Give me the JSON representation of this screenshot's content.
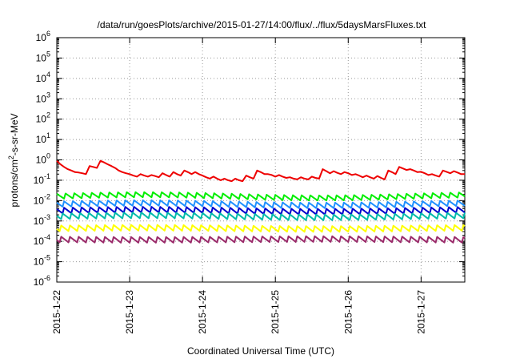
{
  "chart_data": {
    "type": "line",
    "title": "/data/run/goesPlots/archive/2015-01-27/14:00/flux/../flux/5daysMarsFluxes.txt",
    "xlabel": "Coordinated Universal Time (UTC)",
    "ylabel": {
      "base": "protons/cm",
      "sup": "2",
      "rest": "-s-sr-MeV"
    },
    "y_scale": "log",
    "ylim_exp": [
      -6,
      6
    ],
    "y_ticks": [
      {
        "base": "10",
        "exp": "-6"
      },
      {
        "base": "10",
        "exp": "-5"
      },
      {
        "base": "10",
        "exp": "-4"
      },
      {
        "base": "10",
        "exp": "-3"
      },
      {
        "base": "10",
        "exp": "-2"
      },
      {
        "base": "10",
        "exp": "-1"
      },
      {
        "base": "10",
        "exp": "0"
      },
      {
        "base": "10",
        "exp": "1"
      },
      {
        "base": "10",
        "exp": "2"
      },
      {
        "base": "10",
        "exp": "3"
      },
      {
        "base": "10",
        "exp": "4"
      },
      {
        "base": "10",
        "exp": "5"
      },
      {
        "base": "10",
        "exp": "6"
      }
    ],
    "x_ticks": [
      "2015-1-22",
      "2015-1-23",
      "2015-1-24",
      "2015-1-25",
      "2015-1-26",
      "2015-1-27"
    ],
    "xlim_days": [
      0,
      5.6
    ],
    "grid": true,
    "series": [
      {
        "color": "#ee0000",
        "width": 2,
        "points": [
          [
            0.0,
            0.9
          ],
          [
            0.05,
            0.6
          ],
          [
            0.1,
            0.45
          ],
          [
            0.15,
            0.35
          ],
          [
            0.2,
            0.3
          ],
          [
            0.25,
            0.25
          ],
          [
            0.3,
            0.24
          ],
          [
            0.35,
            0.22
          ],
          [
            0.4,
            0.2
          ],
          [
            0.45,
            0.5
          ],
          [
            0.5,
            0.45
          ],
          [
            0.55,
            0.4
          ],
          [
            0.6,
            0.9
          ],
          [
            0.65,
            0.75
          ],
          [
            0.7,
            0.6
          ],
          [
            0.75,
            0.5
          ],
          [
            0.8,
            0.4
          ],
          [
            0.85,
            0.3
          ],
          [
            0.9,
            0.25
          ],
          [
            0.95,
            0.22
          ],
          [
            1.0,
            0.2
          ],
          [
            1.05,
            0.17
          ],
          [
            1.1,
            0.15
          ],
          [
            1.15,
            0.2
          ],
          [
            1.2,
            0.17
          ],
          [
            1.25,
            0.15
          ],
          [
            1.3,
            0.18
          ],
          [
            1.35,
            0.16
          ],
          [
            1.4,
            0.14
          ],
          [
            1.45,
            0.22
          ],
          [
            1.5,
            0.18
          ],
          [
            1.55,
            0.15
          ],
          [
            1.6,
            0.25
          ],
          [
            1.65,
            0.2
          ],
          [
            1.7,
            0.17
          ],
          [
            1.75,
            0.3
          ],
          [
            1.8,
            0.25
          ],
          [
            1.85,
            0.2
          ],
          [
            1.9,
            0.25
          ],
          [
            1.95,
            0.2
          ],
          [
            2.0,
            0.17
          ],
          [
            2.05,
            0.14
          ],
          [
            2.1,
            0.12
          ],
          [
            2.15,
            0.15
          ],
          [
            2.2,
            0.12
          ],
          [
            2.25,
            0.1
          ],
          [
            2.3,
            0.12
          ],
          [
            2.35,
            0.1
          ],
          [
            2.4,
            0.09
          ],
          [
            2.45,
            0.12
          ],
          [
            2.5,
            0.1
          ],
          [
            2.55,
            0.09
          ],
          [
            2.6,
            0.17
          ],
          [
            2.65,
            0.14
          ],
          [
            2.7,
            0.12
          ],
          [
            2.75,
            0.3
          ],
          [
            2.8,
            0.25
          ],
          [
            2.85,
            0.2
          ],
          [
            2.9,
            0.2
          ],
          [
            2.95,
            0.18
          ],
          [
            3.0,
            0.15
          ],
          [
            3.05,
            0.18
          ],
          [
            3.1,
            0.15
          ],
          [
            3.15,
            0.13
          ],
          [
            3.2,
            0.14
          ],
          [
            3.25,
            0.12
          ],
          [
            3.3,
            0.11
          ],
          [
            3.35,
            0.14
          ],
          [
            3.4,
            0.12
          ],
          [
            3.45,
            0.11
          ],
          [
            3.5,
            0.15
          ],
          [
            3.55,
            0.13
          ],
          [
            3.6,
            0.12
          ],
          [
            3.65,
            0.35
          ],
          [
            3.7,
            0.28
          ],
          [
            3.75,
            0.22
          ],
          [
            3.8,
            0.28
          ],
          [
            3.85,
            0.23
          ],
          [
            3.9,
            0.2
          ],
          [
            3.95,
            0.25
          ],
          [
            4.0,
            0.22
          ],
          [
            4.05,
            0.18
          ],
          [
            4.1,
            0.2
          ],
          [
            4.15,
            0.17
          ],
          [
            4.2,
            0.14
          ],
          [
            4.25,
            0.17
          ],
          [
            4.3,
            0.14
          ],
          [
            4.35,
            0.12
          ],
          [
            4.4,
            0.16
          ],
          [
            4.45,
            0.13
          ],
          [
            4.5,
            0.11
          ],
          [
            4.55,
            0.3
          ],
          [
            4.6,
            0.25
          ],
          [
            4.65,
            0.2
          ],
          [
            4.7,
            0.45
          ],
          [
            4.75,
            0.38
          ],
          [
            4.8,
            0.32
          ],
          [
            4.85,
            0.35
          ],
          [
            4.9,
            0.3
          ],
          [
            4.95,
            0.25
          ],
          [
            5.0,
            0.26
          ],
          [
            5.05,
            0.22
          ],
          [
            5.1,
            0.18
          ],
          [
            5.15,
            0.2
          ],
          [
            5.2,
            0.17
          ],
          [
            5.25,
            0.15
          ],
          [
            5.3,
            0.3
          ],
          [
            5.35,
            0.26
          ],
          [
            5.4,
            0.22
          ],
          [
            5.45,
            0.28
          ],
          [
            5.5,
            0.24
          ],
          [
            5.55,
            0.2
          ],
          [
            5.6,
            0.2
          ]
        ]
      },
      {
        "color": "#00ee00",
        "width": 2,
        "base": 0.0165,
        "amp": 0.3,
        "period": 0.12,
        "drift": 0.08
      },
      {
        "color": "#1e90ff",
        "width": 2,
        "base": 0.0065,
        "amp": 0.32,
        "period": 0.12,
        "drift": 0.06
      },
      {
        "color": "#0000cc",
        "width": 2,
        "base": 0.0034,
        "amp": 0.33,
        "period": 0.12,
        "drift": 0.05
      },
      {
        "color": "#00bbaa",
        "width": 2,
        "base": 0.0017,
        "amp": 0.33,
        "period": 0.12,
        "drift": 0.05
      },
      {
        "color": "#ffff00",
        "width": 2,
        "base": 0.00042,
        "amp": 0.33,
        "period": 0.12,
        "drift": 0.03
      },
      {
        "color": "#9a2a6a",
        "width": 2,
        "base": 0.00013,
        "amp": 0.33,
        "period": 0.12,
        "drift": -0.02
      }
    ]
  }
}
